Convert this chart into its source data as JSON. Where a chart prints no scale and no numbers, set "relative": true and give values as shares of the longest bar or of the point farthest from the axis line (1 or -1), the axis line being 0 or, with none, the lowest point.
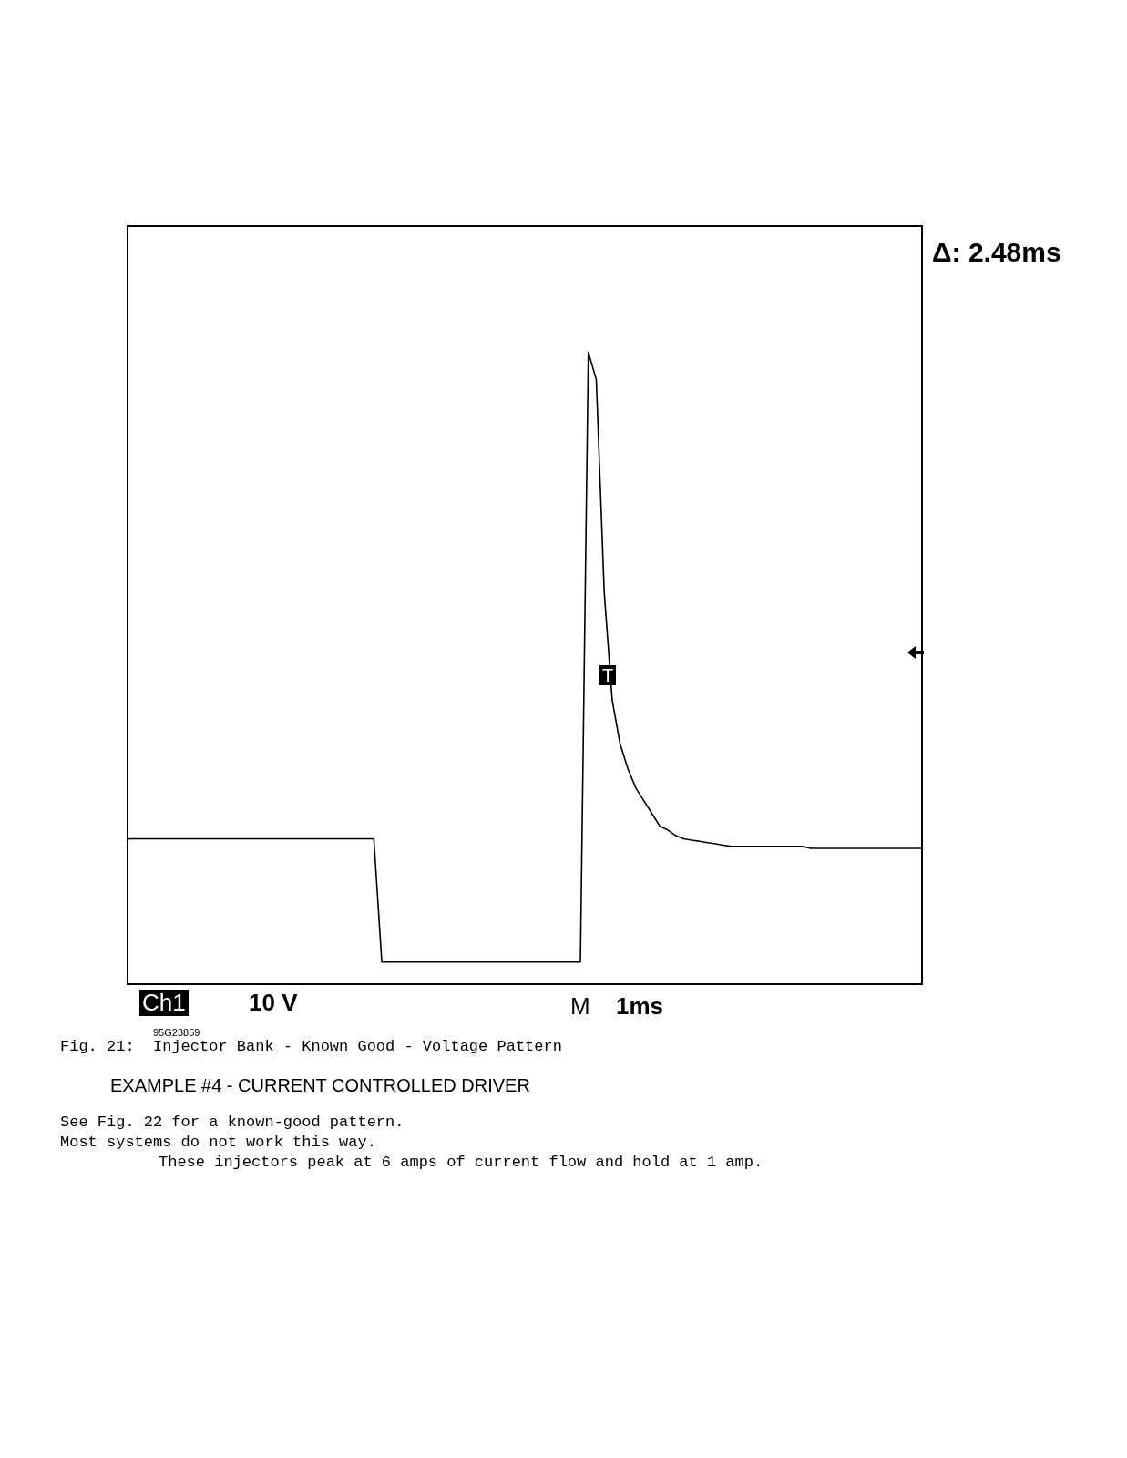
{
  "chart_data": {
    "type": "line",
    "relative": true,
    "color": "#000000",
    "marker": "none",
    "grid": false,
    "tick_labels": false,
    "categories": [
      null,
      null,
      null,
      null,
      null,
      null,
      null,
      null,
      null,
      null,
      null,
      null,
      null,
      null,
      null,
      null,
      null,
      null,
      null,
      null,
      null,
      null,
      null,
      null,
      null,
      null,
      null,
      null,
      null,
      null,
      null,
      null,
      null,
      null,
      null,
      null,
      null,
      null,
      null,
      null,
      null,
      null,
      null,
      null,
      null,
      null,
      null,
      null,
      null,
      null,
      null,
      null,
      null,
      null,
      null,
      null,
      null,
      null,
      null,
      null,
      null,
      null,
      null,
      null,
      null,
      null,
      null,
      null,
      null,
      null,
      null,
      null,
      null,
      null,
      null,
      null,
      null,
      null,
      null,
      null,
      null,
      null,
      null,
      null,
      null,
      null,
      null,
      null,
      null,
      null,
      null,
      null,
      null,
      null,
      null,
      null,
      null,
      null,
      null,
      null,
      null
    ],
    "values": [
      0.23,
      0.23,
      0.23,
      0.23,
      0.23,
      0.23,
      0.23,
      0.23,
      0.23,
      0.23,
      0.23,
      0.23,
      0.23,
      0.23,
      0.23,
      0.23,
      0.23,
      0.23,
      0.23,
      0.23,
      0.23,
      0.23,
      0.23,
      0.23,
      0.23,
      0.23,
      0.23,
      0.23,
      0.23,
      0.23,
      0.23,
      0.23,
      0.035,
      0.035,
      0.035,
      0.035,
      0.035,
      0.035,
      0.035,
      0.035,
      0.035,
      0.035,
      0.035,
      0.035,
      0.035,
      0.035,
      0.035,
      0.035,
      0.035,
      0.035,
      0.035,
      0.035,
      0.035,
      0.035,
      0.035,
      0.035,
      0.035,
      0.035,
      1,
      0.957,
      0.62,
      0.45,
      0.38,
      0.34,
      0.31,
      0.29,
      0.27,
      0.25,
      0.244,
      0.235,
      0.23,
      0.228,
      0.226,
      0.224,
      0.222,
      0.22,
      0.218,
      0.218,
      0.218,
      0.218,
      0.218,
      0.218,
      0.218,
      0.218,
      0.218,
      0.218,
      0.215,
      0.215,
      0.215,
      0.215,
      0.215,
      0.215,
      0.215,
      0.215,
      0.215,
      0.215,
      0.215,
      0.215,
      0.215,
      0.215,
      0.215
    ],
    "annotations": [
      "Δ: 2.48ms",
      "Ch1",
      "10 V",
      "M",
      "1ms",
      "T",
      "95G23859",
      "Fig. 21:  Injector Bank - Known Good - Voltage Pattern",
      "EXAMPLE #4 - CURRENT CONTROLLED DRIVER",
      "See Fig. 22 for a known-good pattern.",
      "Most systems do not work this way.",
      "These injectors peak at 6 amps of current flow and hold at 1 amp."
    ]
  }
}
